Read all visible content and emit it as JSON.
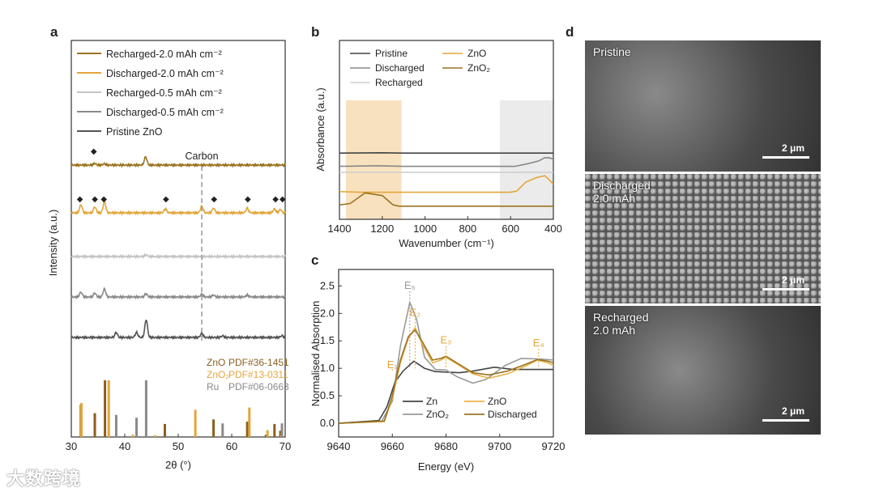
{
  "panel_labels": {
    "a": "a",
    "b": "b",
    "c": "c",
    "d": "d"
  },
  "chart_data": [
    {
      "panel": "a",
      "type": "line",
      "xlabel": "2θ (°)",
      "ylabel": "Intensity (a.u.)",
      "xlim": [
        30,
        70
      ],
      "xticks": [
        "30",
        "40",
        "50",
        "60",
        "70"
      ],
      "series": [
        {
          "name": "Recharged-2.0 mAh cm⁻²",
          "color": "#9a7420",
          "offset": 4,
          "peaks": [
            [
              34.4,
              0.05
            ],
            [
              36.2,
              0.04
            ],
            [
              43.9,
              0.25
            ]
          ],
          "diamonds": [
            34.2
          ]
        },
        {
          "name": "Discharged-2.0 mAh cm⁻²",
          "color": "#e3a63a",
          "offset": 3,
          "peaks": [
            [
              31.8,
              0.25
            ],
            [
              34.4,
              0.18
            ],
            [
              36.2,
              0.35
            ],
            [
              47.6,
              0.12
            ],
            [
              54.4,
              0.2
            ],
            [
              56.6,
              0.14
            ],
            [
              62.9,
              0.14
            ],
            [
              68.0,
              0.12
            ],
            [
              69.1,
              0.1
            ]
          ],
          "diamonds": [
            31.6,
            34.4,
            36.1,
            47.7,
            56.7,
            63.0,
            68.2,
            69.5
          ]
        },
        {
          "name": "Recharged-0.5 mAh cm⁻²",
          "color": "#c4c4c4",
          "offset": 2,
          "peaks": [
            [
              44,
              0.05
            ]
          ],
          "diamonds": []
        },
        {
          "name": "Discharged-0.5 mAh cm⁻²",
          "color": "#8a8a8a",
          "offset": 1,
          "peaks": [
            [
              31.8,
              0.15
            ],
            [
              34.4,
              0.12
            ],
            [
              36.2,
              0.25
            ],
            [
              44,
              0.1
            ],
            [
              54.4,
              0.08
            ],
            [
              56.6,
              0.06
            ],
            [
              62.9,
              0.06
            ]
          ],
          "diamonds": []
        },
        {
          "name": "Pristine ZnO",
          "color": "#555555",
          "offset": 0,
          "peaks": [
            [
              38.4,
              0.15
            ],
            [
              42.2,
              0.15
            ],
            [
              44.0,
              0.55
            ],
            [
              54.4,
              0.12
            ],
            [
              58.3,
              0.05
            ],
            [
              69.4,
              0.05
            ]
          ],
          "diamonds": []
        }
      ],
      "annotation": "Carbon",
      "carbon_position": 54.4,
      "diamond_symbol": "◆",
      "references": [
        {
          "name": "ZnO",
          "pdf": "PDF#36-1451",
          "color": "#8a6020",
          "lines": [
            [
              31.8,
              0.57
            ],
            [
              34.4,
              0.42
            ],
            [
              36.3,
              1.0
            ],
            [
              47.5,
              0.23
            ],
            [
              56.6,
              0.31
            ],
            [
              62.9,
              0.27
            ],
            [
              66.4,
              0.04
            ],
            [
              68.0,
              0.23
            ],
            [
              69.1,
              0.11
            ]
          ]
        },
        {
          "name": "ZnO₂",
          "pdf": "PDF#13-0311",
          "color": "#e3a63a",
          "lines": [
            [
              31.9,
              0.6
            ],
            [
              37.0,
              1.0
            ],
            [
              41.5,
              0.04
            ],
            [
              45.7,
              0.03
            ],
            [
              53.2,
              0.48
            ],
            [
              63.3,
              0.52
            ],
            [
              66.7,
              0.12
            ],
            [
              69.3,
              0.05
            ]
          ]
        },
        {
          "name": "Ru",
          "pdf": "PDF#06-0663",
          "color": "#8a8a8a",
          "lines": [
            [
              38.4,
              0.39
            ],
            [
              42.2,
              0.34
            ],
            [
              44.0,
              1.0
            ],
            [
              58.3,
              0.24
            ],
            [
              69.4,
              0.24
            ]
          ]
        }
      ]
    },
    {
      "panel": "b",
      "type": "line",
      "xlabel": "Wavenumber (cm⁻¹)",
      "ylabel": "Absorbance (a.u.)",
      "xlim": [
        1400,
        400
      ],
      "xticks": [
        "1400",
        "1200",
        "1000",
        "800",
        "600",
        "400"
      ],
      "shaded_regions": [
        {
          "range": [
            1370,
            1110
          ],
          "color": "#f6d9ae"
        },
        {
          "range": [
            650,
            400
          ],
          "color": "#e6e6e6"
        }
      ],
      "series": [
        {
          "name": "Pristine",
          "color": "#444444",
          "points": [
            [
              1400,
              9.0
            ],
            [
              1200,
              9.05
            ],
            [
              1100,
              9.0
            ],
            [
              400,
              9.0
            ]
          ]
        },
        {
          "name": "Discharged",
          "color": "#888888",
          "points": [
            [
              1400,
              7.0
            ],
            [
              1220,
              7.1
            ],
            [
              1100,
              7.0
            ],
            [
              580,
              7.0
            ],
            [
              520,
              7.4
            ],
            [
              470,
              7.8
            ],
            [
              440,
              8.3
            ],
            [
              420,
              8.3
            ],
            [
              400,
              8.1
            ]
          ]
        },
        {
          "name": "Recharged",
          "color": "#cfcfcf",
          "points": [
            [
              1400,
              6.1
            ],
            [
              400,
              6.1
            ]
          ]
        },
        {
          "name": "ZnO",
          "color": "#e3a63a",
          "points": [
            [
              1400,
              3.2
            ],
            [
              1300,
              3.1
            ],
            [
              600,
              3.1
            ],
            [
              570,
              3.3
            ],
            [
              530,
              4.6
            ],
            [
              480,
              5.3
            ],
            [
              440,
              5.6
            ],
            [
              420,
              5.0
            ],
            [
              400,
              4.3
            ]
          ]
        },
        {
          "name": "ZnO₂",
          "color": "#9a7420",
          "points": [
            [
              1400,
              1.2
            ],
            [
              1350,
              1.4
            ],
            [
              1280,
              3.0
            ],
            [
              1200,
              2.6
            ],
            [
              1150,
              1.2
            ],
            [
              1120,
              1.0
            ],
            [
              400,
              1.0
            ]
          ]
        }
      ]
    },
    {
      "panel": "c",
      "type": "line",
      "xlabel": "Energy (eV)",
      "ylabel": "Normalised Absorption",
      "xlim": [
        9640,
        9720
      ],
      "ylim": [
        -0.25,
        2.8
      ],
      "xticks": [
        "9640",
        "9660",
        "9680",
        "9700",
        "9720"
      ],
      "yticks": [
        "0.0",
        "0.5",
        "1.0",
        "1.5",
        "2.0",
        "2.5"
      ],
      "series": [
        {
          "name": "Zn",
          "color": "#444444",
          "points": [
            [
              9640,
              0
            ],
            [
              9655,
              0.05
            ],
            [
              9658,
              0.3
            ],
            [
              9661,
              0.75
            ],
            [
              9664,
              0.95
            ],
            [
              9668,
              1.13
            ],
            [
              9672,
              1.0
            ],
            [
              9676,
              0.94
            ],
            [
              9685,
              0.92
            ],
            [
              9690,
              0.95
            ],
            [
              9698,
              1.02
            ],
            [
              9705,
              0.98
            ],
            [
              9720,
              0.98
            ]
          ]
        },
        {
          "name": "ZnO₂",
          "color": "#999999",
          "points": [
            [
              9640,
              0
            ],
            [
              9656,
              0.03
            ],
            [
              9660,
              0.4
            ],
            [
              9663,
              1.4
            ],
            [
              9666.5,
              2.2
            ],
            [
              9669,
              1.9
            ],
            [
              9672,
              1.2
            ],
            [
              9676,
              0.98
            ],
            [
              9680,
              0.97
            ],
            [
              9684,
              0.85
            ],
            [
              9690,
              0.73
            ],
            [
              9695,
              0.8
            ],
            [
              9702,
              1.05
            ],
            [
              9708,
              1.18
            ],
            [
              9715,
              1.17
            ],
            [
              9720,
              1.15
            ]
          ]
        },
        {
          "name": "ZnO",
          "color": "#e8b24a",
          "points": [
            [
              9640,
              0
            ],
            [
              9657,
              0.03
            ],
            [
              9660,
              0.45
            ],
            [
              9663,
              1.1
            ],
            [
              9666,
              1.55
            ],
            [
              9668.5,
              1.74
            ],
            [
              9671,
              1.45
            ],
            [
              9675,
              1.1
            ],
            [
              9678,
              1.15
            ],
            [
              9680,
              1.2
            ],
            [
              9684,
              1.08
            ],
            [
              9690,
              0.9
            ],
            [
              9696,
              0.82
            ],
            [
              9703,
              0.9
            ],
            [
              9710,
              1.05
            ],
            [
              9714,
              1.15
            ],
            [
              9718,
              1.1
            ],
            [
              9720,
              1.05
            ]
          ]
        },
        {
          "name": "Discharged",
          "color": "#9a7420",
          "points": [
            [
              9640,
              0
            ],
            [
              9657,
              0.04
            ],
            [
              9660,
              0.5
            ],
            [
              9663,
              1.15
            ],
            [
              9666,
              1.58
            ],
            [
              9668.5,
              1.7
            ],
            [
              9671,
              1.5
            ],
            [
              9675,
              1.15
            ],
            [
              9678,
              1.18
            ],
            [
              9680,
              1.22
            ],
            [
              9684,
              1.1
            ],
            [
              9690,
              0.92
            ],
            [
              9696,
              0.88
            ],
            [
              9703,
              0.95
            ],
            [
              9710,
              1.08
            ],
            [
              9714,
              1.16
            ],
            [
              9718,
              1.13
            ],
            [
              9720,
              1.1
            ]
          ]
        }
      ],
      "annotations": [
        {
          "text": "E₁",
          "x": 9660,
          "y": 1.0,
          "color": "#e3a63a"
        },
        {
          "text": "E₂",
          "x": 9668.5,
          "y": 1.95,
          "color": "#e3a63a"
        },
        {
          "text": "E₃",
          "x": 9680,
          "y": 1.45,
          "color": "#e3a63a"
        },
        {
          "text": "E₄",
          "x": 9714.5,
          "y": 1.4,
          "color": "#e3a63a"
        },
        {
          "text": "E₅",
          "x": 9666.5,
          "y": 2.45,
          "color": "#999999"
        }
      ]
    }
  ],
  "sem": [
    {
      "label": "Pristine",
      "scale": "2 μm"
    },
    {
      "label": "Discharged\n2.0 mAh",
      "scale": "2 μm"
    },
    {
      "label": "Recharged\n2.0 mAh",
      "scale": "2 μm"
    }
  ],
  "watermark": "大数跨境"
}
